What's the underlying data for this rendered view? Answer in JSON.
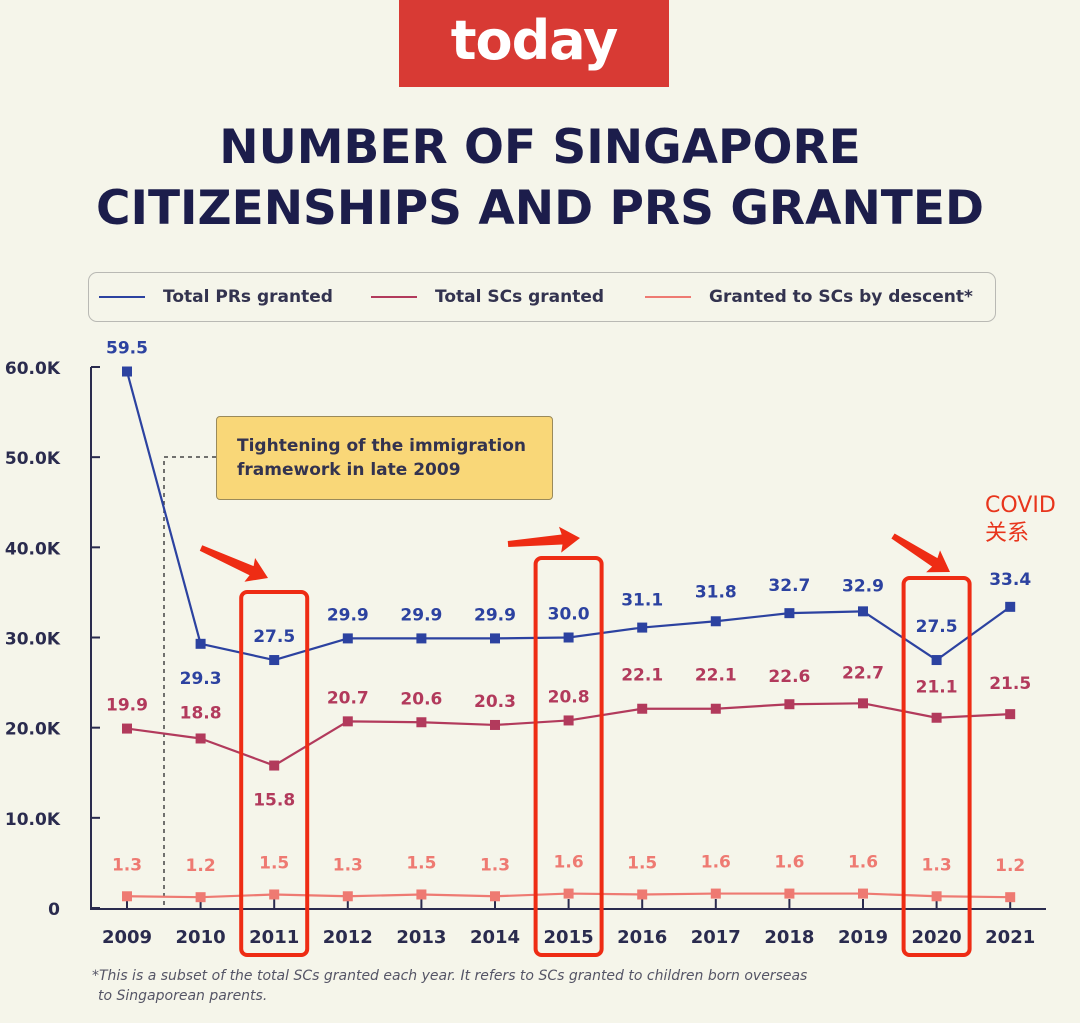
{
  "brand": {
    "logo_text": "today",
    "logo_color": "#d83a34"
  },
  "title_lines": [
    "NUMBER OF SINGAPORE",
    "CITIZENSHIPS AND PRS GRANTED"
  ],
  "legend": [
    {
      "label": "Total PRs granted",
      "color": "#2c42a0"
    },
    {
      "label": "Total SCs granted",
      "color": "#b23a5c"
    },
    {
      "label": "Granted to SCs by descent*",
      "color": "#ee7a72"
    }
  ],
  "callout": {
    "text_lines": [
      "Tightening of the immigration",
      "framework in late 2009"
    ]
  },
  "annotation": {
    "lines": [
      "COVID",
      "关系"
    ]
  },
  "highlight_years": [
    "2011",
    "2015",
    "2020"
  ],
  "footnote": {
    "lines": [
      "*This is a subset of the total SCs granted each year. It refers to SCs granted to children born overseas",
      "to Singaporean parents."
    ]
  },
  "chart_data": {
    "type": "line",
    "x": [
      "2009",
      "2010",
      "2011",
      "2012",
      "2013",
      "2014",
      "2015",
      "2016",
      "2017",
      "2018",
      "2019",
      "2020",
      "2021"
    ],
    "series": [
      {
        "name": "Total PRs granted",
        "color": "#2c42a0",
        "values": [
          59.5,
          29.3,
          27.5,
          29.9,
          29.9,
          29.9,
          30.0,
          31.1,
          31.8,
          32.7,
          32.9,
          27.5,
          33.4
        ],
        "labels": [
          "59.5",
          "29.3",
          "27.5",
          "29.9",
          "29.9",
          "29.9",
          "30.0",
          "31.1",
          "31.8",
          "32.7",
          "32.9",
          "27.5",
          "33.4"
        ]
      },
      {
        "name": "Total SCs granted",
        "color": "#b23a5c",
        "values": [
          19.9,
          18.8,
          15.8,
          20.7,
          20.6,
          20.3,
          20.8,
          22.1,
          22.1,
          22.6,
          22.7,
          21.1,
          21.5
        ],
        "labels": [
          "19.9",
          "18.8",
          "15.8",
          "20.7",
          "20.6",
          "20.3",
          "20.8",
          "22.1",
          "22.1",
          "22.6",
          "22.7",
          "21.1",
          "21.5"
        ]
      },
      {
        "name": "Granted to SCs by descent*",
        "color": "#ee7a72",
        "values": [
          1.3,
          1.2,
          1.5,
          1.3,
          1.5,
          1.3,
          1.6,
          1.5,
          1.6,
          1.6,
          1.6,
          1.3,
          1.2
        ],
        "labels": [
          "1.3",
          "1.2",
          "1.5",
          "1.3",
          "1.5",
          "1.3",
          "1.6",
          "1.5",
          "1.6",
          "1.6",
          "1.6",
          "1.3",
          "1.2"
        ]
      }
    ],
    "yticks": [
      0,
      10,
      20,
      30,
      40,
      50,
      60
    ],
    "ytick_labels": [
      "0",
      "10.0K",
      "20.0K",
      "30.0K",
      "40.0K",
      "50.0K",
      "60.0K"
    ],
    "ylim": [
      0,
      60
    ],
    "unit": "thousands",
    "grid": false,
    "legend_position": "top"
  }
}
